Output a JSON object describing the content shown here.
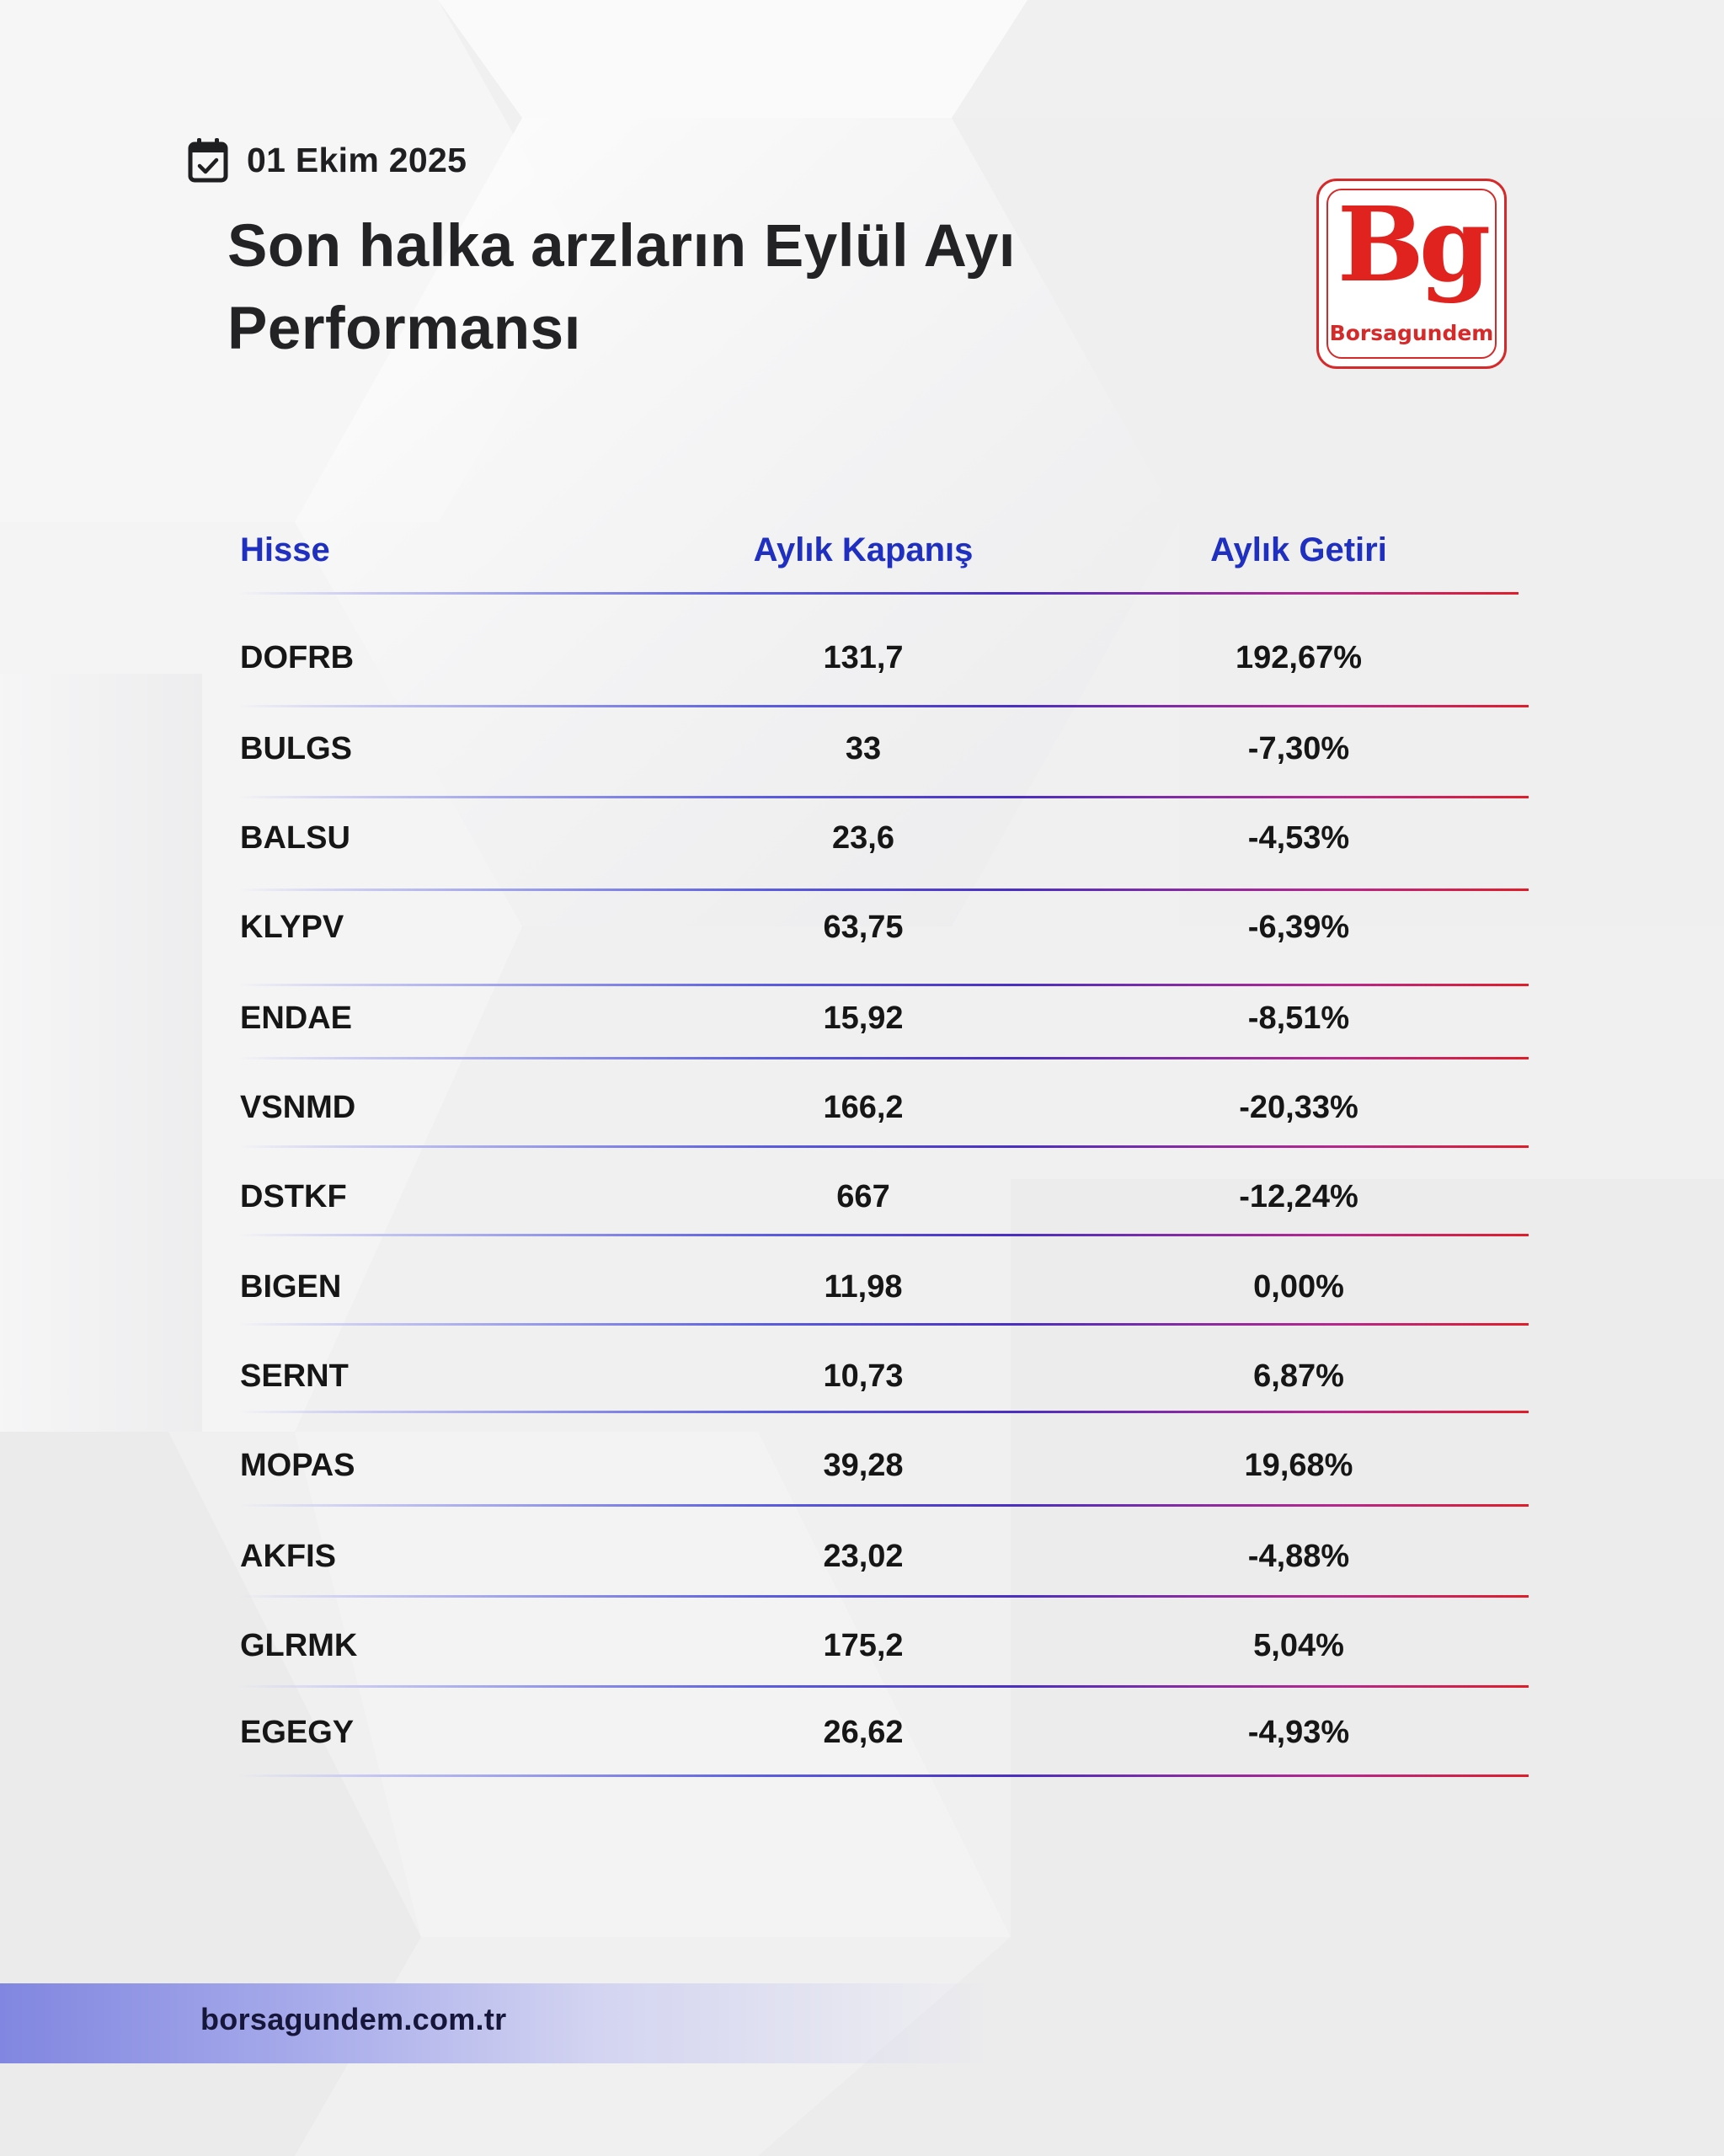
{
  "header": {
    "date": "01 Ekim 2025",
    "title_line1": "Son halka arzların Eylül Ayı",
    "title_line2": "Performansı"
  },
  "logo": {
    "mark": "Bg",
    "name": "Borsagundem",
    "color": "#e0231f"
  },
  "table": {
    "columns": [
      "Hisse",
      "Aylık Kapanış",
      "Aylık Getiri"
    ],
    "rows": [
      {
        "ticker": "DOFRB",
        "close": "131,7",
        "return": "192,67%"
      },
      {
        "ticker": "BULGS",
        "close": "33",
        "return": "-7,30%"
      },
      {
        "ticker": "BALSU",
        "close": "23,6",
        "return": "-4,53%"
      },
      {
        "ticker": "KLYPV",
        "close": "63,75",
        "return": "-6,39%"
      },
      {
        "ticker": "ENDAE",
        "close": "15,92",
        "return": "-8,51%"
      },
      {
        "ticker": "VSNMD",
        "close": "166,2",
        "return": "-20,33%"
      },
      {
        "ticker": "DSTKF",
        "close": "667",
        "return": "-12,24%"
      },
      {
        "ticker": "BIGEN",
        "close": "11,98",
        "return": "0,00%"
      },
      {
        "ticker": "SERNT",
        "close": "10,73",
        "return": "6,87%"
      },
      {
        "ticker": "MOPAS",
        "close": "39,28",
        "return": "19,68%"
      },
      {
        "ticker": "AKFIS",
        "close": "23,02",
        "return": "-4,88%"
      },
      {
        "ticker": "GLRMK",
        "close": "175,2",
        "return": "5,04%"
      },
      {
        "ticker": "EGEGY",
        "close": "26,62",
        "return": "-4,93%"
      }
    ]
  },
  "footer": {
    "website": "borsagundem.com.tr"
  },
  "colors": {
    "header_text": "#1f2fc0",
    "accent_red": "#e11d2a",
    "accent_blue": "#4a2fc2"
  }
}
